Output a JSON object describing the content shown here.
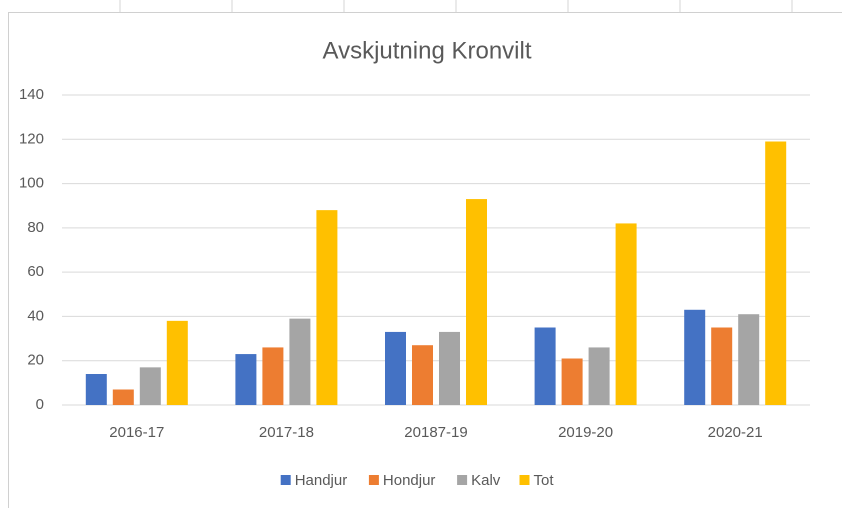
{
  "chart_data": {
    "type": "bar",
    "title": "Avskjutning Kronvilt",
    "categories": [
      "2016-17",
      "2017-18",
      "20187-19",
      "2019-20",
      "2020-21"
    ],
    "series": [
      {
        "name": "Handjur",
        "color": "#4472c4",
        "values": [
          14,
          23,
          33,
          35,
          43
        ]
      },
      {
        "name": "Hondjur",
        "color": "#ed7d31",
        "values": [
          7,
          26,
          27,
          21,
          35
        ]
      },
      {
        "name": "Kalv",
        "color": "#a5a5a5",
        "values": [
          17,
          39,
          33,
          26,
          41
        ]
      },
      {
        "name": "Tot",
        "color": "#ffc000",
        "values": [
          38,
          88,
          93,
          82,
          119
        ]
      }
    ],
    "ylim": [
      0,
      140
    ],
    "yticks": [
      0,
      20,
      40,
      60,
      80,
      100,
      120,
      140
    ],
    "grid": true,
    "legend": "bottom"
  }
}
